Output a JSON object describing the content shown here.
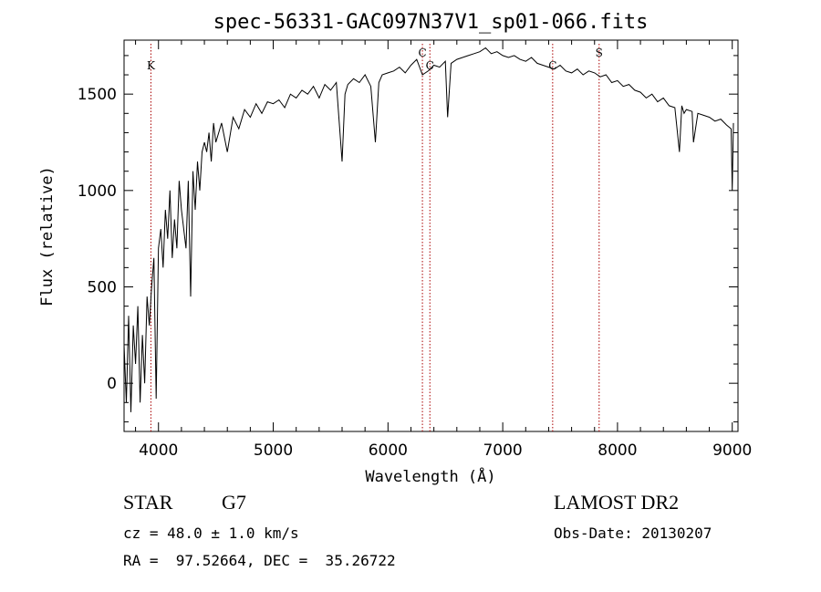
{
  "chart_data": {
    "type": "line",
    "title": "spec-56331-GAC097N37V1_sp01-066.fits",
    "xlabel": "Wavelength (Å)",
    "ylabel": "Flux (relative)",
    "xlim": [
      3700,
      9050
    ],
    "ylim": [
      -250,
      1780
    ],
    "x_ticks": [
      4000,
      5000,
      6000,
      7000,
      8000,
      9000
    ],
    "y_ticks": [
      0,
      500,
      1000,
      1500
    ],
    "grid": false,
    "line_color": "#000000",
    "marker_color": "#aa0000",
    "series": [
      {
        "x": [
          3700,
          3720,
          3740,
          3760,
          3780,
          3800,
          3820,
          3840,
          3860,
          3880,
          3900,
          3920,
          3940,
          3960,
          3980,
          4000,
          4020,
          4040,
          4060,
          4080,
          4100,
          4120,
          4140,
          4160,
          4180,
          4200,
          4220,
          4240,
          4260,
          4280,
          4300,
          4320,
          4340,
          4360,
          4380,
          4400,
          4420,
          4440,
          4460,
          4480,
          4500,
          4550,
          4600,
          4650,
          4700,
          4750,
          4800,
          4850,
          4900,
          4950,
          5000,
          5050,
          5100,
          5150,
          5200,
          5250,
          5300,
          5350,
          5400,
          5450,
          5500,
          5550,
          5600,
          5625,
          5650,
          5700,
          5750,
          5800,
          5850,
          5890,
          5920,
          5950,
          6000,
          6050,
          6100,
          6150,
          6200,
          6250,
          6300,
          6350,
          6400,
          6450,
          6500,
          6520,
          6550,
          6600,
          6650,
          6700,
          6750,
          6800,
          6850,
          6900,
          6950,
          7000,
          7050,
          7100,
          7150,
          7200,
          7250,
          7300,
          7350,
          7400,
          7450,
          7500,
          7550,
          7600,
          7650,
          7700,
          7750,
          7800,
          7850,
          7900,
          7950,
          8000,
          8050,
          8100,
          8150,
          8200,
          8250,
          8300,
          8350,
          8400,
          8450,
          8500,
          8540,
          8560,
          8580,
          8600,
          8650,
          8662,
          8700,
          8750,
          8800,
          8850,
          8900,
          8950,
          8990,
          9000,
          9010
        ],
        "values": [
          200,
          -100,
          350,
          -150,
          300,
          100,
          400,
          -100,
          250,
          0,
          450,
          300,
          500,
          650,
          -80,
          700,
          800,
          600,
          900,
          750,
          1000,
          650,
          850,
          700,
          1050,
          900,
          800,
          700,
          1050,
          450,
          1100,
          900,
          1150,
          1000,
          1200,
          1250,
          1200,
          1300,
          1150,
          1350,
          1250,
          1350,
          1200,
          1380,
          1320,
          1420,
          1380,
          1450,
          1400,
          1460,
          1450,
          1470,
          1430,
          1500,
          1480,
          1520,
          1500,
          1540,
          1480,
          1550,
          1520,
          1560,
          1150,
          1500,
          1550,
          1580,
          1560,
          1600,
          1540,
          1250,
          1560,
          1600,
          1610,
          1620,
          1640,
          1610,
          1650,
          1680,
          1600,
          1620,
          1650,
          1640,
          1670,
          1380,
          1660,
          1680,
          1690,
          1700,
          1710,
          1720,
          1740,
          1710,
          1720,
          1700,
          1690,
          1700,
          1680,
          1670,
          1690,
          1660,
          1650,
          1640,
          1630,
          1650,
          1620,
          1610,
          1630,
          1600,
          1620,
          1610,
          1590,
          1600,
          1560,
          1570,
          1540,
          1550,
          1520,
          1510,
          1480,
          1500,
          1460,
          1480,
          1440,
          1430,
          1200,
          1440,
          1400,
          1420,
          1410,
          1250,
          1400,
          1390,
          1380,
          1360,
          1370,
          1340,
          1320,
          1000,
          1350
        ]
      }
    ],
    "markers": [
      {
        "label": "K",
        "x": 3934
      },
      {
        "label": "C",
        "x": 6300
      },
      {
        "label": "C",
        "x": 6365
      },
      {
        "label": "C",
        "x": 7435
      },
      {
        "label": "S",
        "x": 7840
      }
    ]
  },
  "info": {
    "object_class": "STAR",
    "subclass": "G7",
    "survey": "LAMOST DR2",
    "redshift": "cz = 48.0 ± 1.0 km/s",
    "obs_date": "Obs-Date: 20130207",
    "coords": "RA =  97.52664, DEC =  35.26722"
  }
}
